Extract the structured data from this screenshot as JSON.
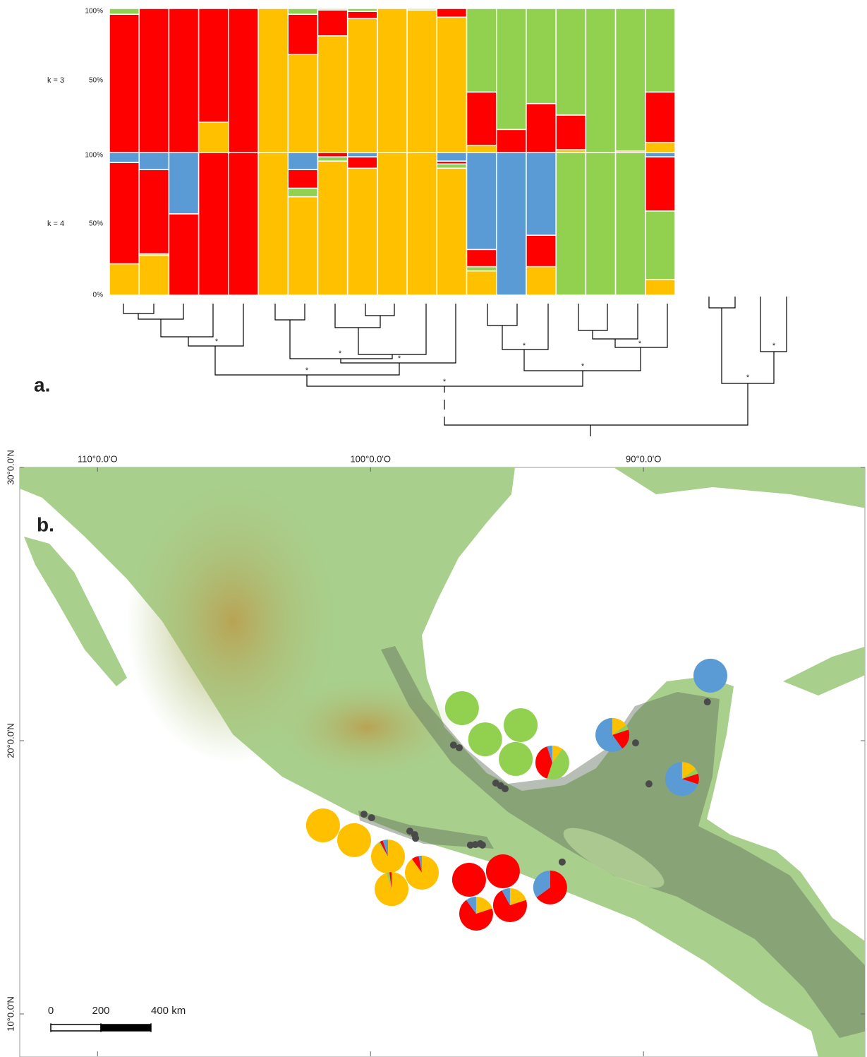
{
  "panel_labels": [
    "a.",
    "b."
  ],
  "dendrogram": {
    "node_labels": [
      "*",
      "*",
      "*",
      "*",
      "*",
      "*",
      "*",
      "*",
      "*",
      "*"
    ]
  },
  "chart_data": [
    {
      "type": "bar",
      "title": "k = 3",
      "categories": [
        null,
        null,
        null,
        null,
        null,
        null,
        null,
        null,
        null,
        null,
        null,
        null,
        null,
        null,
        null,
        null,
        null,
        null,
        null
      ],
      "series": [
        {
          "color": "#ffc000",
          "values": [
            0,
            0,
            0,
            21,
            0,
            100,
            68,
            81,
            93,
            100,
            99,
            94,
            5,
            0,
            0,
            2,
            0,
            0,
            7
          ]
        },
        {
          "color": "#ff0000",
          "values": [
            96,
            100,
            100,
            79,
            100,
            0,
            28,
            18,
            5,
            0,
            0,
            6,
            37,
            16,
            34,
            24,
            0,
            1,
            35
          ]
        },
        {
          "color": "#92d050",
          "values": [
            4,
            0,
            0,
            0,
            0,
            0,
            4,
            1,
            2,
            0,
            1,
            0,
            58,
            84,
            66,
            74,
            100,
            99,
            58
          ]
        }
      ],
      "ylim": [
        0,
        100
      ],
      "yticks": [
        {
          "value": 50,
          "label": "50%"
        },
        {
          "value": 100,
          "label": "100%"
        }
      ],
      "stacked": true
    },
    {
      "type": "bar",
      "title": "k = 4",
      "categories": [
        null,
        null,
        null,
        null,
        null,
        null,
        null,
        null,
        null,
        null,
        null,
        null,
        null,
        null,
        null,
        null,
        null,
        null,
        null
      ],
      "series": [
        {
          "color": "#ffc000",
          "values": [
            22,
            28,
            0,
            0,
            0,
            100,
            69,
            94,
            89,
            100,
            100,
            89,
            17,
            0,
            20,
            0,
            0,
            0,
            11
          ]
        },
        {
          "color": "#92d050",
          "values": [
            0,
            1,
            0,
            0,
            0,
            0,
            6,
            3,
            0,
            0,
            0,
            3,
            3,
            0,
            0,
            100,
            100,
            100,
            48
          ]
        },
        {
          "color": "#ff0000",
          "values": [
            71,
            59,
            57,
            100,
            100,
            0,
            13,
            3,
            8,
            0,
            0,
            2,
            12,
            0,
            22,
            0,
            0,
            0,
            38
          ]
        },
        {
          "color": "#5b9bd5",
          "values": [
            7,
            12,
            43,
            0,
            0,
            0,
            12,
            0,
            3,
            0,
            0,
            6,
            68,
            100,
            58,
            0,
            0,
            0,
            3
          ]
        }
      ],
      "ylim": [
        0,
        100
      ],
      "yticks": [
        {
          "value": 0,
          "label": "0%"
        },
        {
          "value": 50,
          "label": "50%"
        },
        {
          "value": 100,
          "label": "100%"
        }
      ],
      "stacked": true
    },
    {
      "type": "map",
      "xlim": [
        -112.85,
        -81.89
      ],
      "ylim": [
        8.45,
        30
      ],
      "xticks": [
        {
          "value": -110,
          "label": "110°0.0'O"
        },
        {
          "value": -100,
          "label": "100°0.0'O"
        },
        {
          "value": -90,
          "label": "90°0.0'O"
        }
      ],
      "yticks": [
        {
          "value": 30,
          "label": "30°0.0'N"
        },
        {
          "value": 20,
          "label": "20°0.0'N"
        },
        {
          "value": 10,
          "label": "10°0.0'N"
        }
      ],
      "pies": [
        {
          "x": -96.65,
          "y": 21.19,
          "values": [
            0,
            100,
            0,
            0
          ]
        },
        {
          "x": -95.8,
          "y": 20.05,
          "values": [
            0,
            100,
            0,
            0
          ]
        },
        {
          "x": -94.5,
          "y": 20.57,
          "values": [
            0,
            100,
            0,
            0
          ]
        },
        {
          "x": -94.68,
          "y": 19.33,
          "values": [
            0,
            100,
            0,
            0
          ]
        },
        {
          "x": -93.34,
          "y": 19.2,
          "values": [
            10,
            45,
            40,
            5
          ]
        },
        {
          "x": -91.14,
          "y": 20.21,
          "values": [
            15,
            5,
            20,
            60
          ]
        },
        {
          "x": -87.55,
          "y": 22.38,
          "values": [
            0,
            0,
            0,
            100
          ]
        },
        {
          "x": -88.59,
          "y": 18.6,
          "values": [
            15,
            5,
            10,
            70
          ]
        },
        {
          "x": -101.74,
          "y": 16.9,
          "values": [
            100,
            0,
            0,
            0
          ]
        },
        {
          "x": -100.6,
          "y": 16.36,
          "values": [
            100,
            0,
            0,
            0
          ]
        },
        {
          "x": -99.36,
          "y": 15.76,
          "values": [
            90,
            2,
            3,
            5
          ]
        },
        {
          "x": -98.12,
          "y": 15.17,
          "values": [
            90,
            0,
            7,
            3
          ]
        },
        {
          "x": -99.23,
          "y": 14.57,
          "values": [
            95,
            3,
            2,
            0
          ]
        },
        {
          "x": -96.39,
          "y": 14.91,
          "values": [
            0,
            0,
            100,
            0
          ]
        },
        {
          "x": -95.15,
          "y": 15.22,
          "values": [
            0,
            0,
            100,
            0
          ]
        },
        {
          "x": -96.13,
          "y": 13.67,
          "values": [
            20,
            0,
            70,
            10
          ]
        },
        {
          "x": -94.89,
          "y": 13.98,
          "values": [
            20,
            0,
            72,
            8
          ]
        },
        {
          "x": -93.42,
          "y": 14.63,
          "values": [
            0,
            0,
            65,
            35
          ]
        }
      ],
      "sites": {
        "x": [
          -96.96,
          -96.75,
          -95.41,
          -95.23,
          -95.07,
          -90.29,
          -87.66,
          -89.8,
          -100.24,
          -99.96,
          -98.56,
          -98.38,
          -98.35,
          -96.34,
          -96.16,
          -95.98,
          -95.9,
          -92.98
        ],
        "y": [
          19.84,
          19.74,
          18.45,
          18.35,
          18.24,
          19.92,
          21.42,
          18.42,
          17.31,
          17.18,
          16.69,
          16.56,
          16.43,
          16.18,
          16.2,
          16.23,
          16.18,
          15.56
        ]
      },
      "scale_bar": {
        "ticks": [
          0,
          200,
          {
            "value": 400,
            "label": "400 km"
          }
        ]
      }
    }
  ]
}
